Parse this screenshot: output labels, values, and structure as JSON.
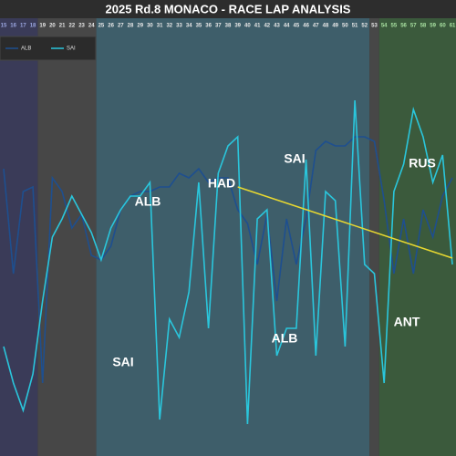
{
  "chart_data": {
    "type": "line",
    "title": "2025 Rd.8 MONACO - RACE LAP ANALYSIS",
    "x": [
      15,
      16,
      17,
      18,
      19,
      20,
      21,
      22,
      23,
      24,
      25,
      26,
      27,
      28,
      29,
      30,
      31,
      32,
      33,
      34,
      35,
      36,
      37,
      38,
      39,
      40,
      41,
      42,
      43,
      44,
      45,
      46,
      47,
      48,
      49,
      50,
      51,
      52,
      53,
      54,
      55,
      56,
      57,
      58,
      59,
      60,
      61
    ],
    "xticks": [
      15,
      16,
      17,
      18,
      19,
      20,
      21,
      22,
      23,
      24,
      25,
      26,
      27,
      28,
      29,
      30,
      31,
      32,
      33,
      34,
      35,
      36,
      37,
      38,
      39,
      40,
      41,
      42,
      43,
      44,
      45,
      46,
      47,
      48,
      49,
      50,
      51,
      52,
      53,
      54,
      55,
      56,
      57,
      58,
      59,
      60,
      61
    ],
    "xlim": [
      14.63,
      61.37
    ],
    "ylim": [
      0,
      480
    ],
    "series": [
      {
        "name": "ALB",
        "color": "#1e4f8f",
        "values": [
          315,
          200,
          290,
          295,
          80,
          305,
          290,
          250,
          265,
          220,
          215,
          230,
          270,
          285,
          290,
          290,
          295,
          295,
          310,
          305,
          315,
          300,
          305,
          305,
          270,
          255,
          210,
          265,
          170,
          260,
          210,
          260,
          335,
          345,
          340,
          340,
          350,
          350,
          345,
          280,
          200,
          260,
          200,
          270,
          240,
          285,
          305
        ]
      },
      {
        "name": "SAI",
        "color": "#2ac6dc",
        "values": [
          120,
          80,
          50,
          90,
          170,
          240,
          260,
          285,
          265,
          245,
          215,
          250,
          270,
          285,
          285,
          300,
          40,
          150,
          130,
          180,
          300,
          140,
          310,
          340,
          350,
          35,
          260,
          270,
          110,
          140,
          140,
          325,
          110,
          290,
          280,
          120,
          390,
          210,
          200,
          80,
          290,
          320,
          380,
          350,
          300,
          330,
          210
        ]
      }
    ],
    "trend": {
      "x": [
        39,
        61
      ],
      "values": [
        295,
        217
      ],
      "color": "#e8d830"
    },
    "regions": [
      {
        "from": 14.63,
        "to": 18.5,
        "color": "#3a3b58"
      },
      {
        "from": 18.5,
        "to": 24.5,
        "color": "#474747"
      },
      {
        "from": 24.5,
        "to": 52.5,
        "color": "#3e5e6a"
      },
      {
        "from": 52.5,
        "to": 53.5,
        "color": "#474747"
      },
      {
        "from": 53.5,
        "to": 61.37,
        "color": "#3b5a3c"
      }
    ],
    "annotations": [
      "ALB",
      "SAI",
      "HAD",
      "SAI",
      "ALB",
      "RUS",
      "ANT"
    ]
  }
}
